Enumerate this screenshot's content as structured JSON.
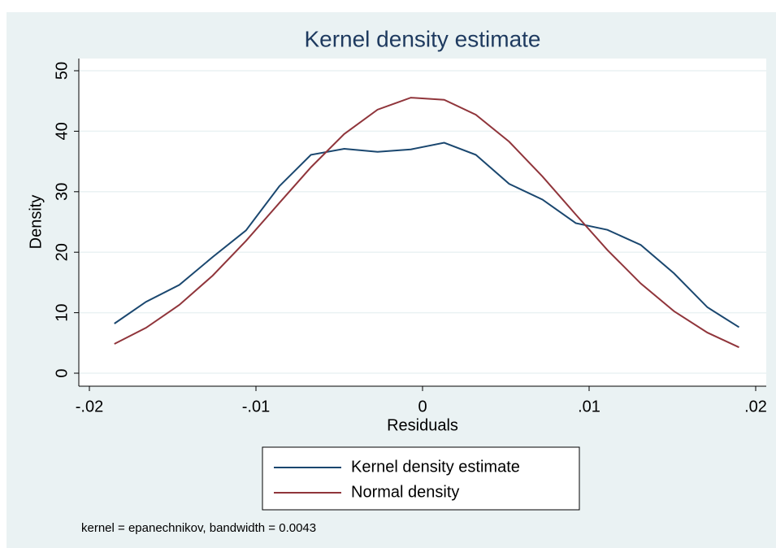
{
  "chart_data": {
    "type": "line",
    "title": "Kernel density estimate",
    "x_label": "Residuals",
    "y_label": "Density",
    "note": "kernel = epanechnikov, bandwidth = 0.0043",
    "x": [
      -0.0185,
      -0.0166,
      -0.0146,
      -0.0126,
      -0.0106,
      -0.0086,
      -0.0067,
      -0.0047,
      -0.0027,
      -0.0007,
      0.0013,
      0.0032,
      0.0052,
      0.0072,
      0.0092,
      0.0111,
      0.0131,
      0.0151,
      0.0171,
      0.019
    ],
    "series": [
      {
        "name": "Kernel density estimate",
        "color": "#1a476f",
        "values": [
          8.2,
          11.8,
          14.6,
          19.2,
          23.6,
          30.9,
          36.1,
          37.1,
          36.6,
          37.0,
          38.1,
          36.1,
          31.3,
          28.7,
          24.8,
          23.7,
          21.2,
          16.5,
          10.9,
          7.6
        ]
      },
      {
        "name": "Normal density",
        "color": "#90353b",
        "values": [
          4.84,
          7.5,
          11.29,
          16.13,
          21.87,
          28.13,
          34.04,
          39.54,
          43.57,
          45.55,
          45.2,
          42.73,
          38.27,
          32.52,
          26.23,
          20.36,
          14.83,
          10.24,
          6.71,
          4.28
        ]
      }
    ],
    "xlim": [
      -0.02,
      0.02
    ],
    "xticks": [
      {
        "value": -0.02,
        "label": "-.02"
      },
      {
        "value": -0.01,
        "label": "-.01"
      },
      0,
      {
        "value": 0.01,
        "label": ".01"
      },
      {
        "value": 0.02,
        "label": ".02"
      }
    ],
    "ylim": [
      0,
      50
    ],
    "yticks": [
      0,
      10,
      20,
      30,
      40,
      50
    ],
    "grid": true,
    "legend_position": "bottom"
  }
}
